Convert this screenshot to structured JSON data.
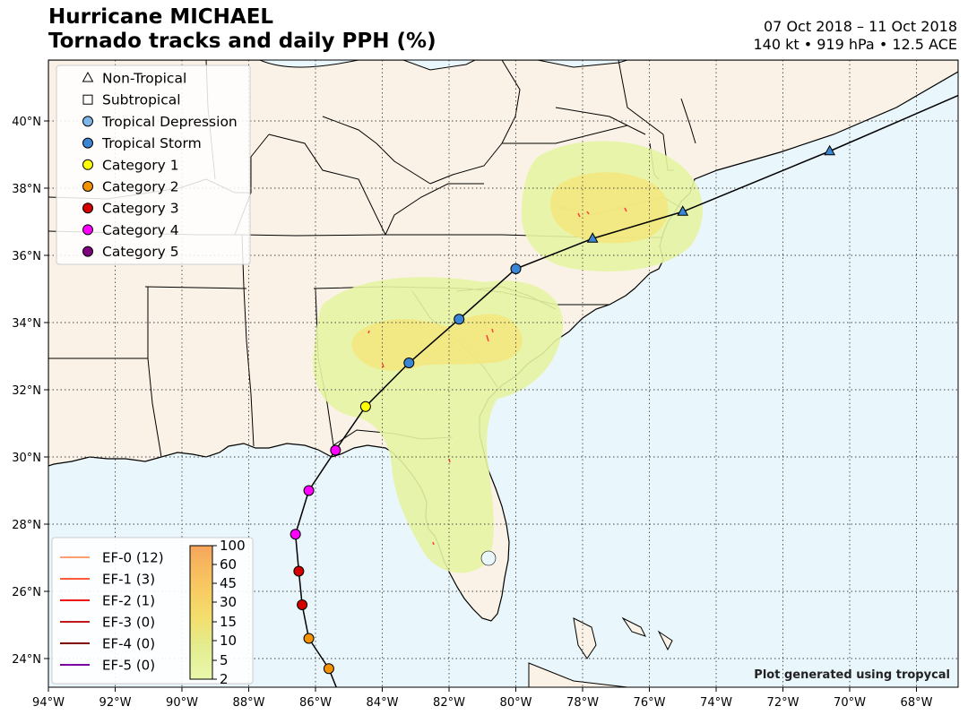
{
  "title": {
    "line1": "Hurricane MICHAEL",
    "line2": "Tornado tracks and daily PPH (%)"
  },
  "info": {
    "dates": "07 Oct 2018 – 11 Oct 2018",
    "stats": "140 kt • 919 hPa • 12.5 ACE"
  },
  "axes": {
    "lon_ticks": [
      "94°W",
      "92°W",
      "90°W",
      "88°W",
      "86°W",
      "84°W",
      "82°W",
      "80°W",
      "78°W",
      "76°W",
      "74°W",
      "72°W",
      "70°W",
      "68°W"
    ],
    "lat_ticks": [
      "40°N",
      "38°N",
      "36°N",
      "34°N",
      "32°N",
      "30°N",
      "28°N",
      "26°N",
      "24°N"
    ]
  },
  "legend": {
    "items": [
      {
        "label": "Non-Tropical",
        "marker": "triangle",
        "color": "#ffffff"
      },
      {
        "label": "Subtropical",
        "marker": "square",
        "color": "#ffffff"
      },
      {
        "label": "Tropical Depression",
        "marker": "circle",
        "color": "#7fb6ea"
      },
      {
        "label": "Tropical Storm",
        "marker": "circle",
        "color": "#3a86d6"
      },
      {
        "label": "Category 1",
        "marker": "circle",
        "color": "#ffff00"
      },
      {
        "label": "Category 2",
        "marker": "circle",
        "color": "#f39200"
      },
      {
        "label": "Category 3",
        "marker": "circle",
        "color": "#d40000"
      },
      {
        "label": "Category 4",
        "marker": "circle",
        "color": "#ff00ff"
      },
      {
        "label": "Category 5",
        "marker": "circle",
        "color": "#800080"
      }
    ]
  },
  "ef_legend": [
    {
      "label": "EF-0 (12)",
      "color": "#ff9e6e"
    },
    {
      "label": "EF-1 (3)",
      "color": "#ff5a3a"
    },
    {
      "label": "EF-2 (1)",
      "color": "#ee1010"
    },
    {
      "label": "EF-3 (0)",
      "color": "#c01818"
    },
    {
      "label": "EF-4 (0)",
      "color": "#800000"
    },
    {
      "label": "EF-5 (0)",
      "color": "#7a00a0"
    }
  ],
  "colorbar": {
    "ticks": [
      "100",
      "60",
      "45",
      "30",
      "15",
      "10",
      "5",
      "2"
    ],
    "colors": [
      "#f6a45c",
      "#f7b85e",
      "#f8cd62",
      "#f5dc6a",
      "#f0e67c",
      "#e7ec8e",
      "#dbf09c",
      "#e8f8a8"
    ]
  },
  "track": [
    {
      "lat": 23.7,
      "lon": -85.6,
      "cat": "Category 2"
    },
    {
      "lat": 24.6,
      "lon": -86.2,
      "cat": "Category 2"
    },
    {
      "lat": 25.6,
      "lon": -86.4,
      "cat": "Category 3"
    },
    {
      "lat": 26.6,
      "lon": -86.5,
      "cat": "Category 3"
    },
    {
      "lat": 27.7,
      "lon": -86.6,
      "cat": "Category 4"
    },
    {
      "lat": 29.0,
      "lon": -86.2,
      "cat": "Category 4"
    },
    {
      "lat": 30.2,
      "lon": -85.4,
      "cat": "Category 4"
    },
    {
      "lat": 31.5,
      "lon": -84.5,
      "cat": "Category 1"
    },
    {
      "lat": 32.8,
      "lon": -83.2,
      "cat": "Tropical Storm"
    },
    {
      "lat": 34.1,
      "lon": -81.7,
      "cat": "Tropical Storm"
    },
    {
      "lat": 35.6,
      "lon": -80.0,
      "cat": "Tropical Storm"
    },
    {
      "lat": 36.5,
      "lon": -77.7,
      "cat": "Non-Tropical"
    },
    {
      "lat": 37.3,
      "lon": -75.0,
      "cat": "Non-Tropical"
    },
    {
      "lat": 39.1,
      "lon": -70.6,
      "cat": "Non-Tropical"
    }
  ],
  "credit": "Plot generated using tropycal",
  "colors": {
    "land": "#faf2e6",
    "ocean": "#e9f6fb",
    "pph_outer": "#e6f4a2",
    "pph_inner": "#f3e67e",
    "track_line": "#000000"
  }
}
